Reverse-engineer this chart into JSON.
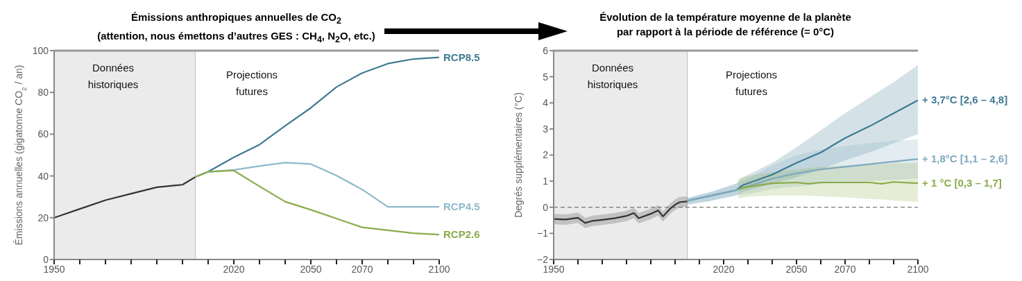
{
  "chart_data": [
    {
      "type": "line",
      "title": "Émissions anthropiques annuelles de CO$_{2}$",
      "subtitle": "(attention, nous émettons d’autres GES : CH$_{4}$, N$_{2}$O, etc.)",
      "ylabel": "Émissions annuelles (gigatonne CO$_{2}$ / an)",
      "xlim": [
        1950,
        2100
      ],
      "xticks": [
        1950,
        {
          "value": 1960,
          "label": null
        },
        {
          "value": 1970,
          "label": null
        },
        {
          "value": 1980,
          "label": null
        },
        {
          "value": 1990,
          "label": null
        },
        {
          "value": 2000,
          "label": null
        },
        {
          "value": 2010,
          "label": null
        },
        2020,
        {
          "value": 2030,
          "label": null
        },
        {
          "value": 2040,
          "label": null
        },
        2050,
        {
          "value": 2060,
          "label": null
        },
        2070,
        {
          "value": 2080,
          "label": null
        },
        {
          "value": 2090,
          "label": null
        },
        2100
      ],
      "ylim": [
        0,
        100
      ],
      "yticks": [
        0,
        20,
        40,
        60,
        80,
        100
      ],
      "grid": false,
      "legend": false,
      "bands": [
        {
          "axis": "x",
          "from": 1950,
          "to": 2005,
          "label": "Données historiques",
          "color": "#ebebeb"
        }
      ],
      "annotations": [
        "Projections futures"
      ],
      "series": [
        {
          "color": "#333333",
          "x": [
            1950,
            1960,
            1970,
            1980,
            1990,
            2000,
            2005
          ],
          "values": [
            20,
            24.2,
            28.4,
            31.5,
            34.6,
            35.8,
            39.5
          ]
        },
        {
          "name": "RCP8.5",
          "color": "#3f7a91",
          "x": [
            2005,
            2010,
            2020,
            2030,
            2040,
            2050,
            2060,
            2070,
            2080,
            2090,
            2100
          ],
          "values": [
            39.5,
            42,
            48.9,
            55,
            64,
            72.6,
            82.6,
            89.3,
            93.8,
            96,
            96.8
          ]
        },
        {
          "name": "RCP4.5",
          "color": "#8fb9c9",
          "x": [
            2005,
            2010,
            2020,
            2030,
            2040,
            2050,
            2060,
            2070,
            2080,
            2090,
            2100
          ],
          "values": [
            39.5,
            42,
            42.9,
            44.7,
            46.4,
            45.7,
            40.2,
            33.5,
            25.2,
            25.2,
            25.2
          ]
        },
        {
          "name": "RCP2.6",
          "color": "#8aab4a",
          "x": [
            2005,
            2010,
            2020,
            2030,
            2040,
            2050,
            2060,
            2070,
            2080,
            2090,
            2100
          ],
          "values": [
            39.5,
            42,
            42.6,
            35,
            27.7,
            23.8,
            19.6,
            15.4,
            14,
            12.6,
            11.9
          ]
        }
      ]
    },
    {
      "type": "line",
      "title": "Évolution de la température moyenne de la planète",
      "subtitle": "par rapport à la période de référence (= 0°C)",
      "ylabel": "Degrés supplémentaires (°C)",
      "xlim": [
        1950,
        2100
      ],
      "xticks": [
        1950,
        {
          "value": 1960,
          "label": null
        },
        {
          "value": 1970,
          "label": null
        },
        {
          "value": 1980,
          "label": null
        },
        {
          "value": 1990,
          "label": null
        },
        {
          "value": 2000,
          "label": null
        },
        {
          "value": 2010,
          "label": null
        },
        2020,
        {
          "value": 2030,
          "label": null
        },
        {
          "value": 2040,
          "label": null
        },
        2050,
        {
          "value": 2060,
          "label": null
        },
        2070,
        {
          "value": 2080,
          "label": null
        },
        {
          "value": 2090,
          "label": null
        },
        2100
      ],
      "ylim": [
        -2,
        6
      ],
      "yticks": [
        -2,
        -1,
        0,
        1,
        2,
        3,
        4,
        5,
        6
      ],
      "grid": false,
      "legend": false,
      "bands": [
        {
          "axis": "x",
          "from": 1950,
          "to": 2005,
          "label": "Données historiques",
          "color": "#ebebeb"
        }
      ],
      "annotations": [
        "Projections futures"
      ],
      "ref_lines": [
        {
          "axis": "y",
          "value": 0,
          "color": "#555555",
          "line_style": "dashed"
        }
      ],
      "series": [
        {
          "color": "#333333",
          "x": [
            1950,
            1955,
            1960,
            1963,
            1966,
            1970,
            1975,
            1980,
            1983,
            1985,
            1990,
            1993,
            1995,
            1998,
            2000,
            2002,
            2005
          ],
          "values": [
            -0.45,
            -0.47,
            -0.4,
            -0.6,
            -0.52,
            -0.48,
            -0.42,
            -0.33,
            -0.22,
            -0.42,
            -0.25,
            -0.12,
            -0.35,
            -0.05,
            0.1,
            0.2,
            0.22
          ],
          "lower": [
            -0.65,
            -0.67,
            -0.6,
            -0.8,
            -0.72,
            -0.68,
            -0.62,
            -0.53,
            -0.42,
            -0.62,
            -0.45,
            -0.32,
            -0.55,
            -0.25,
            -0.1,
            0.0,
            0.02
          ],
          "upper": [
            -0.25,
            -0.27,
            -0.2,
            -0.4,
            -0.32,
            -0.28,
            -0.22,
            -0.13,
            -0.02,
            -0.22,
            -0.05,
            0.08,
            -0.15,
            0.15,
            0.3,
            0.4,
            0.42
          ]
        },
        {
          "name": "+ 3,7°C [2,6 – 4,8]",
          "color": "#3d7a93",
          "x": [
            2005,
            2015,
            2025,
            2028,
            2040,
            2050,
            2060,
            2070,
            2080,
            2090,
            2100
          ],
          "values": [
            0.25,
            0.45,
            0.65,
            0.85,
            1.25,
            1.7,
            2.1,
            2.65,
            3.1,
            3.6,
            4.1
          ],
          "lower": [
            0.1,
            0.25,
            0.45,
            0.6,
            0.9,
            1.15,
            1.45,
            1.8,
            2.1,
            2.45,
            2.8
          ],
          "upper": [
            0.35,
            0.6,
            0.9,
            1.15,
            1.7,
            2.3,
            2.95,
            3.6,
            4.2,
            4.8,
            5.45
          ]
        },
        {
          "name": "+ 1,8°C [1,1 – 2,6]",
          "color": "#7fa9bd",
          "x": [
            2005,
            2015,
            2025,
            2030,
            2040,
            2050,
            2060,
            2070,
            2080,
            2090,
            2100
          ],
          "values": [
            0.25,
            0.45,
            0.65,
            0.8,
            1.1,
            1.3,
            1.45,
            1.55,
            1.65,
            1.75,
            1.85
          ],
          "lower": [
            0.1,
            0.25,
            0.45,
            0.5,
            0.7,
            0.8,
            0.9,
            0.95,
            1.0,
            1.05,
            1.1
          ],
          "upper": [
            0.35,
            0.6,
            0.9,
            1.1,
            1.6,
            2.0,
            2.2,
            2.35,
            2.45,
            2.55,
            2.6
          ]
        },
        {
          "name": "+ 1 °C [0,3 – 1,7]",
          "color": "#8aab4a",
          "x": [
            2026,
            2030,
            2040,
            2050,
            2055,
            2060,
            2070,
            2080,
            2085,
            2090,
            2100
          ],
          "values": [
            0.7,
            0.78,
            0.92,
            0.95,
            0.9,
            0.95,
            0.95,
            0.95,
            0.9,
            0.97,
            0.92
          ],
          "lower": [
            0.35,
            0.4,
            0.45,
            0.45,
            0.45,
            0.42,
            0.38,
            0.32,
            0.3,
            0.26,
            0.2
          ],
          "upper": [
            1.1,
            1.2,
            1.35,
            1.45,
            1.5,
            1.55,
            1.6,
            1.65,
            1.65,
            1.7,
            1.7
          ]
        }
      ]
    }
  ]
}
